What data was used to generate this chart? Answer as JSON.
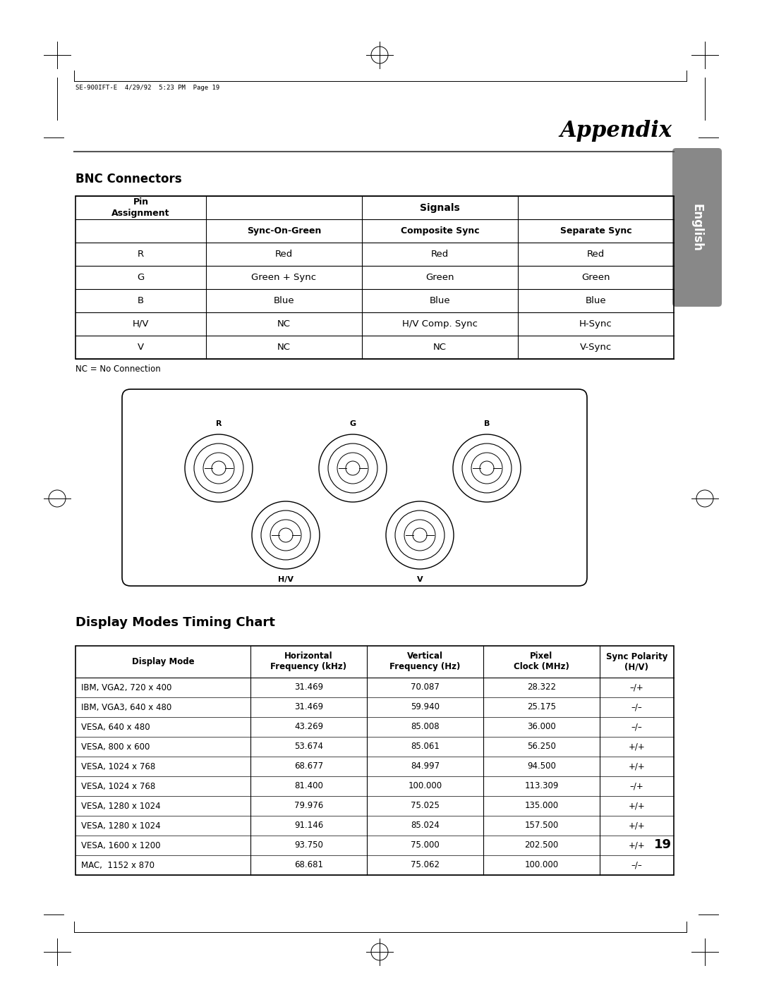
{
  "page_label": "SE-900IFT-E  4/29/92  5:23 PM  Page 19",
  "title": "Appendix",
  "tab_label": "English",
  "bnc_title": "BNC Connectors",
  "bnc_subheaders": [
    "Sync-On-Green",
    "Composite Sync",
    "Separate Sync"
  ],
  "bnc_rows": [
    [
      "R",
      "Red",
      "Red",
      "Red"
    ],
    [
      "G",
      "Green + Sync",
      "Green",
      "Green"
    ],
    [
      "B",
      "Blue",
      "Blue",
      "Blue"
    ],
    [
      "H/V",
      "NC",
      "H/V Comp. Sync",
      "H-Sync"
    ],
    [
      "V",
      "NC",
      "NC",
      "V-Sync"
    ]
  ],
  "nc_note": "NC = No Connection",
  "display_title": "Display Modes Timing Chart",
  "display_headers": [
    "Display Mode",
    "Horizontal\nFrequency (kHz)",
    "Vertical\nFrequency (Hz)",
    "Pixel\nClock (MHz)",
    "Sync Polarity\n(H/V)"
  ],
  "display_rows": [
    [
      "IBM, VGA2, 720 x 400",
      "31.469",
      "70.087",
      "28.322",
      "–/+"
    ],
    [
      "IBM, VGA3, 640 x 480",
      "31.469",
      "59.940",
      "25.175",
      "–/–"
    ],
    [
      "VESA, 640 x 480",
      "43.269",
      "85.008",
      "36.000",
      "–/–"
    ],
    [
      "VESA, 800 x 600",
      "53.674",
      "85.061",
      "56.250",
      "+/+"
    ],
    [
      "VESA, 1024 x 768",
      "68.677",
      "84.997",
      "94.500",
      "+/+"
    ],
    [
      "VESA, 1024 x 768",
      "81.400",
      "100.000",
      "113.309",
      "–/+"
    ],
    [
      "VESA, 1280 x 1024",
      "79.976",
      "75.025",
      "135.000",
      "+/+"
    ],
    [
      "VESA, 1280 x 1024",
      "91.146",
      "85.024",
      "157.500",
      "+/+"
    ],
    [
      "VESA, 1600 x 1200",
      "93.750",
      "75.000",
      "202.500",
      "+/+"
    ],
    [
      "MAC,  1152 x 870",
      "68.681",
      "75.062",
      "100.000",
      "–/–"
    ]
  ],
  "page_number": "19",
  "bg_color": "#ffffff",
  "tab_bg": "#888888",
  "tab_text": "#ffffff"
}
